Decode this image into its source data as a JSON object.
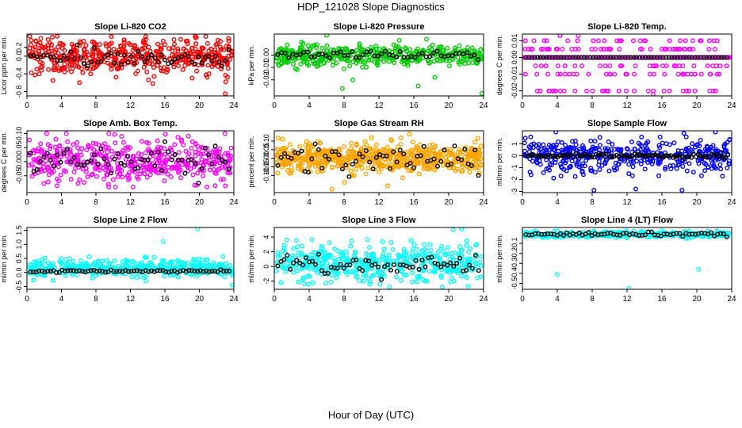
{
  "page": {
    "title": "HDP_121028  Slope Diagnostics",
    "x_axis_label": "Hour of Day (UTC)"
  },
  "colors": {
    "red": "#ff0000",
    "green": "#00cc00",
    "magenta": "#ff00ff",
    "orange": "#ffa500",
    "blue": "#0000ff",
    "cyan": "#00ffff",
    "black": "#000000"
  },
  "chart_data": [
    {
      "type": "scatter",
      "title": "Slope Li-820 CO2",
      "ylabel": "Licor ppm per min.",
      "color": "#ff0000",
      "xlim": [
        0,
        24
      ],
      "ylim": [
        -0.9,
        0.5
      ],
      "xticks": [
        0,
        4,
        8,
        12,
        16,
        20,
        24
      ],
      "yticks": [
        -0.8,
        -0.4,
        0.0,
        0.2
      ],
      "ytick_labels": [
        "-0.8",
        "-0.4",
        "0.0",
        "0.2"
      ],
      "samples": {
        "count": 500,
        "center": 0.0,
        "spread": 0.2,
        "clip": [
          -0.7,
          0.45
        ]
      },
      "outliers": [
        [
          6.1,
          -0.6
        ],
        [
          3.0,
          -0.55
        ],
        [
          23.0,
          -0.85
        ],
        [
          14.6,
          -0.62
        ]
      ],
      "overlay_series": {
        "color": "#000000",
        "center": -0.05,
        "spread": 0.12,
        "count": 60
      }
    },
    {
      "type": "scatter",
      "title": "Slope Li-820 Pressure",
      "ylabel": "kPa per min.",
      "color": "#00cc00",
      "xlim": [
        0,
        24
      ],
      "ylim": [
        -0.033,
        0.017
      ],
      "xticks": [
        0,
        4,
        8,
        12,
        16,
        20,
        24
      ],
      "yticks": [
        -0.02,
        -0.01,
        0.0
      ],
      "ytick_labels": [
        "-0.02",
        "-0.01",
        "0.00"
      ],
      "samples": {
        "count": 450,
        "center": 0.0,
        "spread": 0.004,
        "clip": [
          -0.02,
          0.015
        ]
      },
      "outliers": [
        [
          6.0,
          0.016
        ],
        [
          7.8,
          -0.027
        ],
        [
          9.0,
          -0.02
        ],
        [
          16.5,
          -0.025
        ],
        [
          18.4,
          -0.018
        ],
        [
          23.8,
          -0.031
        ]
      ],
      "overlay_series": {
        "color": "#000000",
        "center": 0.0,
        "spread": 0.002,
        "count": 55
      }
    },
    {
      "type": "scatter",
      "title": "Slope Li-820 Temp.",
      "ylabel": "degrees C per min.",
      "color": "#ff00ff",
      "xlim": [
        0,
        24
      ],
      "ylim": [
        -0.023,
        0.014
      ],
      "xticks": [
        0,
        4,
        8,
        12,
        16,
        20,
        24
      ],
      "yticks": [
        -0.02,
        -0.01,
        0.0,
        0.01
      ],
      "ytick_labels": [
        "-0.02",
        "-0.01",
        "0.00",
        "0.01"
      ],
      "quantized_levels": [
        -0.02,
        -0.01,
        0.0,
        0.005,
        -0.005,
        0.01
      ],
      "outliers": [
        [
          4.3,
          0.013
        ],
        [
          6.4,
          0.013
        ],
        [
          11.9,
          -0.02
        ],
        [
          15.0,
          -0.022
        ]
      ],
      "overlay_series": {
        "color": "#000000",
        "center": 0.0,
        "spread": 0.0,
        "count": 70
      }
    },
    {
      "type": "scatter",
      "title": "Slope Amb. Box Temp.",
      "ylabel": "degrees C per min.",
      "color": "#ff00ff",
      "xlim": [
        0,
        24
      ],
      "ylim": [
        -0.11,
        0.11
      ],
      "xticks": [
        0,
        4,
        8,
        12,
        16,
        20,
        24
      ],
      "yticks": [
        -0.05,
        0.0,
        0.05,
        0.1
      ],
      "ytick_labels": [
        "-0.05",
        "0.00",
        "0.05",
        "0.10"
      ],
      "samples": {
        "count": 480,
        "center": 0.0,
        "spread": 0.035,
        "clip": [
          -0.09,
          0.1
        ]
      },
      "outliers": [
        [
          9.5,
          0.1
        ],
        [
          12.3,
          -0.09
        ]
      ],
      "overlay_series": {
        "color": "#000000",
        "center": 0.01,
        "spread": 0.03,
        "count": 60
      }
    },
    {
      "type": "scatter",
      "title": "Slope Gas Stream RH",
      "ylabel": "percent per min.",
      "color": "#ffa500",
      "xlim": [
        0,
        24
      ],
      "ylim": [
        -0.2,
        0.16
      ],
      "xticks": [
        0,
        4,
        8,
        12,
        16,
        20,
        24
      ],
      "yticks": [
        -0.1,
        -0.05,
        0.0,
        0.05,
        0.1
      ],
      "ytick_labels": [
        "-0.10",
        "-0.05",
        "0.00",
        "0.05",
        "0.10"
      ],
      "samples": {
        "count": 650,
        "center": 0.0,
        "spread": 0.04,
        "clip": [
          -0.18,
          0.15
        ]
      },
      "outliers": [
        [
          6.6,
          -0.18
        ],
        [
          13.0,
          -0.16
        ],
        [
          15.5,
          0.14
        ]
      ],
      "overlay_series": {
        "color": "#000000",
        "center": 0.0,
        "spread": 0.04,
        "count": 60
      }
    },
    {
      "type": "scatter",
      "title": "Slope Sample Flow",
      "ylabel": "ml/min per min.",
      "color": "#0000ff",
      "xlim": [
        0,
        24
      ],
      "ylim": [
        -3.1,
        2.1
      ],
      "xticks": [
        0,
        4,
        8,
        12,
        16,
        20,
        24
      ],
      "yticks": [
        -3,
        -2,
        -1,
        0,
        1
      ],
      "ytick_labels": [
        "-3",
        "-2",
        "-1",
        "0",
        "1"
      ],
      "samples": {
        "count": 430,
        "center": 0.0,
        "spread": 0.7,
        "clip": [
          -2.9,
          2.0
        ]
      },
      "outliers": [
        [
          8.2,
          -2.9
        ],
        [
          13.0,
          -2.8
        ],
        [
          18.3,
          -2.9
        ]
      ],
      "overlay_series": {
        "color": "#000000",
        "center": 0.0,
        "spread": 0.08,
        "count": 90
      }
    },
    {
      "type": "scatter",
      "title": "Slope Line 2 Flow",
      "ylabel": "ml/min per min.",
      "color": "#00ffff",
      "xlim": [
        0,
        24
      ],
      "ylim": [
        -0.6,
        1.6
      ],
      "xticks": [
        0,
        4,
        8,
        12,
        16,
        20,
        24
      ],
      "yticks": [
        -0.5,
        0.0,
        0.5,
        1.0,
        1.5
      ],
      "ytick_labels": [
        "-0.5",
        "0.0",
        "0.5",
        "1.0",
        "1.5"
      ],
      "samples": {
        "count": 420,
        "center": 0.15,
        "spread": 0.15,
        "clip": [
          -0.3,
          0.8
        ]
      },
      "outliers": [
        [
          15.8,
          1.1
        ],
        [
          19.8,
          1.55
        ],
        [
          23.8,
          -0.45
        ]
      ],
      "overlay_series": {
        "color": "#000000",
        "center": 0.05,
        "spread": 0.02,
        "count": 70
      }
    },
    {
      "type": "scatter",
      "title": "Slope Line 3 Flow",
      "ylabel": "ml/min per min.",
      "color": "#00ffff",
      "xlim": [
        0,
        24
      ],
      "ylim": [
        -3.1,
        5.3
      ],
      "xticks": [
        0,
        4,
        8,
        12,
        16,
        20,
        24
      ],
      "yticks": [
        -2,
        0,
        2,
        4
      ],
      "ytick_labels": [
        "-2",
        "0",
        "2",
        "4"
      ],
      "samples": {
        "count": 480,
        "center": 0.5,
        "spread": 1.2,
        "clip": [
          -2.8,
          5.2
        ]
      },
      "outliers": [
        [
          20.5,
          5.0
        ],
        [
          21.5,
          5.1
        ]
      ],
      "overlay_series": {
        "color": "#000000",
        "center": 0.3,
        "spread": 0.8,
        "count": 65
      }
    },
    {
      "type": "scatter",
      "title": "Slope Line 4 (LT) Flow",
      "ylabel": "ml/min per min.",
      "color": "#00ffff",
      "xlim": [
        0,
        24
      ],
      "ylim": [
        -0.56,
        0.06
      ],
      "xticks": [
        0,
        4,
        8,
        12,
        16,
        20,
        24
      ],
      "yticks": [
        -0.5,
        -0.4,
        -0.3,
        -0.2,
        -0.1
      ],
      "ytick_labels": [
        "-0.5",
        "-0.4",
        "-0.3",
        "-0.2",
        "-0.1"
      ],
      "samples": {
        "count": 380,
        "center": -0.01,
        "spread": 0.015,
        "clip": [
          -0.06,
          0.04
        ]
      },
      "outliers": [
        [
          4.0,
          -0.41
        ],
        [
          12.2,
          -0.55
        ],
        [
          20.2,
          -0.36
        ]
      ],
      "overlay_series": {
        "color": "#000000",
        "center": -0.01,
        "spread": 0.01,
        "count": 65
      }
    }
  ]
}
